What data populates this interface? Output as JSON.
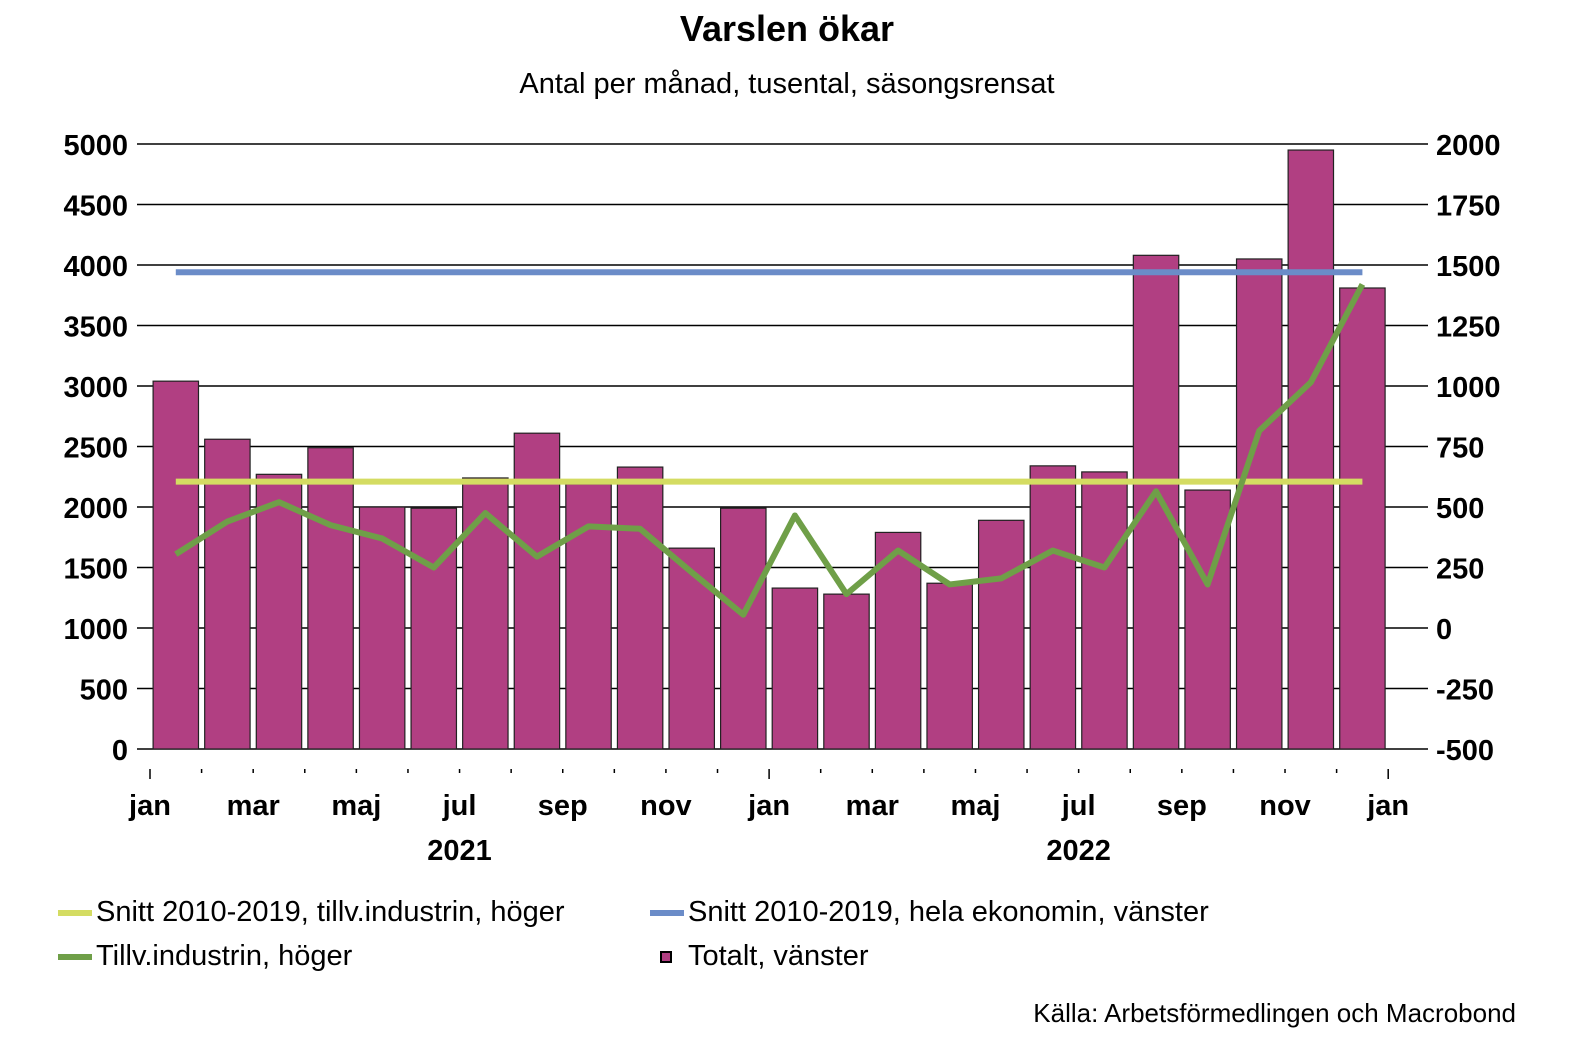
{
  "chart_data": {
    "type": "bar+line",
    "title": "Varslen ökar",
    "subtitle": "Antal per månad, tusental, säsongsrensat",
    "source": "Källa: Arbetsförmedlingen och Macrobond",
    "left_axis": {
      "ticks": [
        "5000",
        "4500",
        "4000",
        "3500",
        "3000",
        "2500",
        "2000",
        "1500",
        "1000",
        "500",
        "0"
      ],
      "ylim": [
        0,
        5000
      ]
    },
    "right_axis": {
      "ticks": [
        "2000",
        "1750",
        "1500",
        "1250",
        "1000",
        "750",
        "500",
        "250",
        "0",
        "-250",
        "-500"
      ],
      "ylim": [
        -500,
        2000
      ]
    },
    "x_tick_labels": [
      "jan",
      "mar",
      "maj",
      "jul",
      "sep",
      "nov",
      "jan",
      "mar",
      "maj",
      "jul",
      "sep",
      "nov",
      "jan"
    ],
    "year_labels": [
      "2021",
      "2022"
    ],
    "months": [
      "2021-01",
      "2021-02",
      "2021-03",
      "2021-04",
      "2021-05",
      "2021-06",
      "2021-07",
      "2021-08",
      "2021-09",
      "2021-10",
      "2021-11",
      "2021-12",
      "2022-01",
      "2022-02",
      "2022-03",
      "2022-04",
      "2022-05",
      "2022-06",
      "2022-07",
      "2022-08",
      "2022-09",
      "2022-10",
      "2022-11",
      "2022-12"
    ],
    "series": [
      {
        "name": "Totalt, vänster",
        "axis": "left",
        "kind": "bar",
        "color": "#b13f82",
        "values": [
          3040,
          2560,
          2270,
          2490,
          2000,
          1990,
          2240,
          2610,
          2190,
          2330,
          1660,
          1990,
          1330,
          1280,
          1790,
          1370,
          1890,
          2340,
          2290,
          4080,
          2140,
          4050,
          4950,
          3810
        ]
      },
      {
        "name": "Tillv.industrin, höger",
        "axis": "right",
        "kind": "line",
        "color": "#6f9f48",
        "values": [
          305,
          440,
          520,
          425,
          370,
          250,
          475,
          295,
          420,
          410,
          230,
          55,
          465,
          140,
          320,
          180,
          205,
          320,
          250,
          565,
          180,
          815,
          1015,
          1420
        ]
      },
      {
        "name": "Snitt 2010-2019, tillv.industrin, höger",
        "axis": "right",
        "kind": "hline",
        "color": "#d4dc62",
        "values": [
          605,
          605,
          605,
          605,
          605,
          605,
          605,
          605,
          605,
          605,
          605,
          605,
          605,
          605,
          605,
          605,
          605,
          605,
          605,
          605,
          605,
          605,
          605,
          605
        ]
      },
      {
        "name": "Snitt 2010-2019, hela ekonomin, vänster",
        "axis": "left",
        "kind": "hline",
        "color": "#6b8cc8",
        "values": [
          3940,
          3940,
          3940,
          3940,
          3940,
          3940,
          3940,
          3940,
          3940,
          3940,
          3940,
          3940,
          3940,
          3940,
          3940,
          3940,
          3940,
          3940,
          3940,
          3940,
          3940,
          3940,
          3940,
          3940
        ]
      }
    ]
  },
  "legend": {
    "yellow_label": "Snitt 2010-2019, tillv.industrin, höger",
    "blue_label": "Snitt 2010-2019, hela ekonomin, vänster",
    "green_label": "Tillv.industrin, höger",
    "bar_label": "Totalt, vänster"
  }
}
